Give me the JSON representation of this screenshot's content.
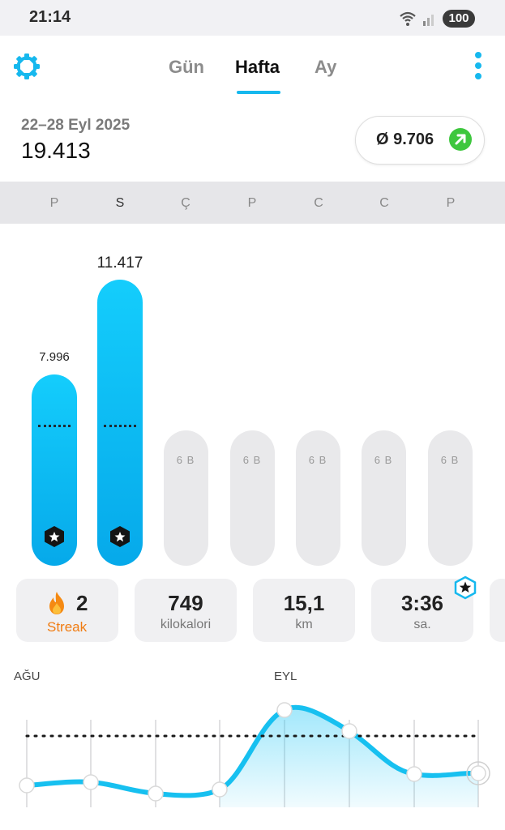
{
  "status_bar": {
    "time": "21:14",
    "battery": "100"
  },
  "header": {
    "tabs": [
      {
        "label": "Gün"
      },
      {
        "label": "Hafta"
      },
      {
        "label": "Ay"
      }
    ],
    "selected_tab": "Hafta"
  },
  "summary": {
    "date_range": "22–28 Eyl 2025",
    "total_steps": "19.413",
    "average": "Ø 9.706"
  },
  "days": [
    "P",
    "S",
    "Ç",
    "P",
    "C",
    "C",
    "P"
  ],
  "bars": {
    "values": [
      7996,
      11417,
      null,
      null,
      null,
      null,
      null
    ],
    "labels": [
      "7.996",
      "11.417"
    ],
    "future_label": "6 B"
  },
  "stats": [
    {
      "value": "2",
      "label": "Streak"
    },
    {
      "value": "749",
      "label": "kilokalori"
    },
    {
      "value": "15,1",
      "label": "km"
    },
    {
      "value": "3:36",
      "label": "sa."
    }
  ],
  "trend": {
    "months": [
      "AĞU",
      "EYL"
    ]
  },
  "colors": {
    "accent": "#16b8ee",
    "streak": "#f07c12",
    "up_arrow": "#3ec73e"
  }
}
